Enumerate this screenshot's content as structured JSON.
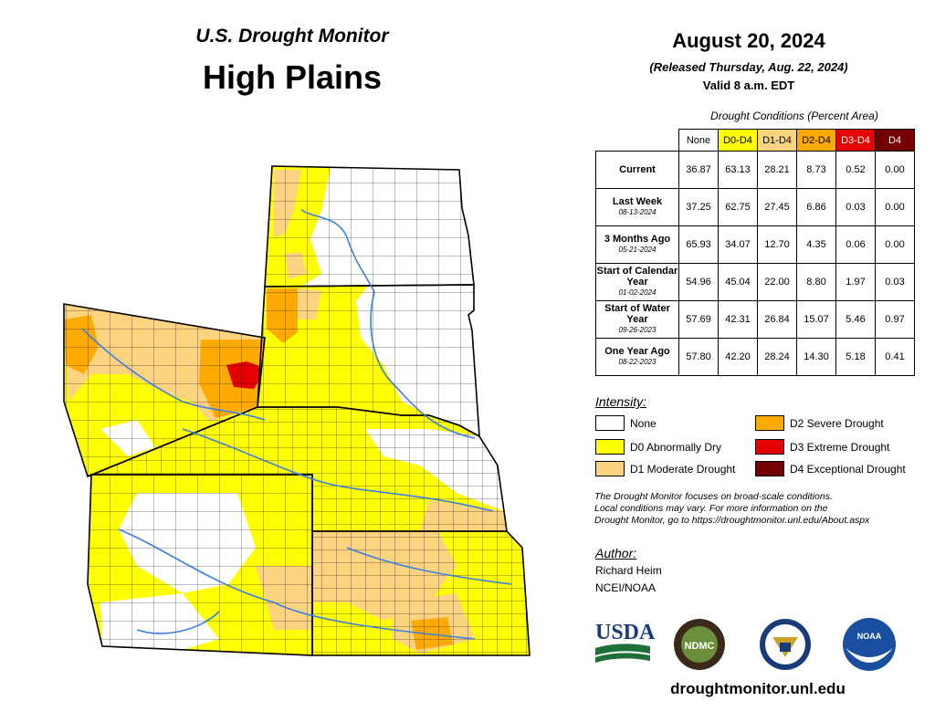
{
  "header": {
    "subtitle": "U.S. Drought Monitor",
    "region": "High Plains",
    "date": "August 20, 2024",
    "released": "(Released Thursday, Aug. 22, 2024)",
    "valid": "Valid 8 a.m. EDT"
  },
  "table": {
    "caption": "Drought Conditions (Percent Area)",
    "columns": [
      "None",
      "D0-D4",
      "D1-D4",
      "D2-D4",
      "D3-D4",
      "D4"
    ],
    "column_colors": [
      "#ffffff",
      "#ffff00",
      "#fcd37f",
      "#ffaa00",
      "#e60000",
      "#730000"
    ],
    "rows": [
      {
        "label": "Current",
        "date": "",
        "values": [
          "36.87",
          "63.13",
          "28.21",
          "8.73",
          "0.52",
          "0.00"
        ]
      },
      {
        "label": "Last Week",
        "date": "08-13-2024",
        "values": [
          "37.25",
          "62.75",
          "27.45",
          "6.86",
          "0.03",
          "0.00"
        ]
      },
      {
        "label": "3 Months Ago",
        "date": "05-21-2024",
        "values": [
          "65.93",
          "34.07",
          "12.70",
          "4.35",
          "0.06",
          "0.00"
        ]
      },
      {
        "label": "Start of Calendar Year",
        "date": "01-02-2024",
        "values": [
          "54.96",
          "45.04",
          "22.00",
          "8.80",
          "1.97",
          "0.03"
        ]
      },
      {
        "label": "Start of Water Year",
        "date": "09-26-2023",
        "values": [
          "57.69",
          "42.31",
          "26.84",
          "15.07",
          "5.46",
          "0.97"
        ]
      },
      {
        "label": "One Year Ago",
        "date": "08-22-2023",
        "values": [
          "57.80",
          "42.20",
          "28.24",
          "14.30",
          "5.18",
          "0.41"
        ]
      }
    ]
  },
  "legend": {
    "title": "Intensity:",
    "items": [
      {
        "label": "None",
        "color": "#ffffff"
      },
      {
        "label": "D0 Abnormally Dry",
        "color": "#ffff00"
      },
      {
        "label": "D1 Moderate Drought",
        "color": "#fcd37f"
      },
      {
        "label": "D2 Severe Drought",
        "color": "#ffaa00"
      },
      {
        "label": "D3 Extreme Drought",
        "color": "#e60000"
      },
      {
        "label": "D4 Exceptional Drought",
        "color": "#730000"
      }
    ]
  },
  "note": {
    "line1": "The Drought Monitor focuses on broad-scale conditions.",
    "line2": "Local conditions may vary. For more information on the",
    "line3": "Drought Monitor, go to https://droughtmonitor.unl.edu/About.aspx"
  },
  "author": {
    "title": "Author:",
    "name": "Richard Heim",
    "org": "NCEI/NOAA"
  },
  "logos": {
    "usda": "USDA",
    "ndmc": "NDMC",
    "noaa": "NOAA"
  },
  "footer": {
    "url": "droughtmonitor.unl.edu"
  }
}
